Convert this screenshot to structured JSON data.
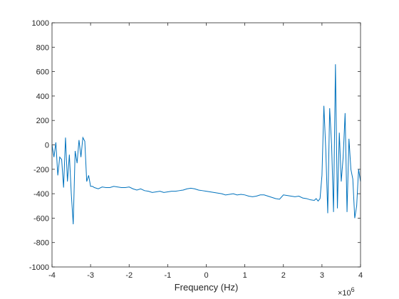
{
  "chart_data": {
    "type": "line",
    "xlabel": "Frequency (Hz)",
    "ylabel": "",
    "title": "",
    "x_exponent_base": "×10",
    "x_exponent_power": "6",
    "xlim": [
      -4,
      4
    ],
    "ylim": [
      -1000,
      1000
    ],
    "x_ticks": [
      -4,
      -3,
      -2,
      -1,
      0,
      1,
      2,
      3,
      4
    ],
    "x_tick_labels": [
      "-4",
      "-3",
      "-2",
      "-1",
      "0",
      "1",
      "2",
      "3",
      "4"
    ],
    "y_ticks": [
      -1000,
      -800,
      -600,
      -400,
      -200,
      0,
      200,
      400,
      600,
      800,
      1000
    ],
    "y_tick_labels": [
      "-1000",
      "-800",
      "-600",
      "-400",
      "-200",
      "0",
      "200",
      "400",
      "600",
      "800",
      "1000"
    ],
    "grid": false,
    "series_color": "#0072BD",
    "series": [
      {
        "x": [
          -4.0,
          -3.95,
          -3.9,
          -3.85,
          -3.8,
          -3.75,
          -3.7,
          -3.65,
          -3.6,
          -3.55,
          -3.5,
          -3.45,
          -3.4,
          -3.35,
          -3.3,
          -3.25,
          -3.2,
          -3.15,
          -3.1,
          -3.05,
          -3.0,
          -2.95,
          -2.9,
          -2.8,
          -2.7,
          -2.6,
          -2.5,
          -2.4,
          -2.3,
          -2.2,
          -2.1,
          -2.0,
          -1.9,
          -1.8,
          -1.7,
          -1.6,
          -1.5,
          -1.4,
          -1.3,
          -1.2,
          -1.1,
          -1.0,
          -0.9,
          -0.8,
          -0.7,
          -0.6,
          -0.5,
          -0.4,
          -0.3,
          -0.2,
          -0.1,
          0.0,
          0.1,
          0.2,
          0.3,
          0.4,
          0.5,
          0.6,
          0.7,
          0.8,
          0.9,
          1.0,
          1.1,
          1.2,
          1.3,
          1.4,
          1.5,
          1.6,
          1.7,
          1.8,
          1.9,
          2.0,
          2.1,
          2.2,
          2.3,
          2.4,
          2.5,
          2.6,
          2.7,
          2.8,
          2.85,
          2.9,
          2.95,
          3.0,
          3.05,
          3.1,
          3.15,
          3.2,
          3.25,
          3.3,
          3.35,
          3.4,
          3.45,
          3.5,
          3.55,
          3.6,
          3.65,
          3.7,
          3.75,
          3.8,
          3.85,
          3.9,
          3.95,
          4.0
        ],
        "y": [
          0,
          -100,
          20,
          -250,
          -100,
          -120,
          -350,
          60,
          -300,
          -80,
          -400,
          -650,
          -50,
          -150,
          40,
          -100,
          60,
          30,
          -300,
          -250,
          -340,
          -340,
          -350,
          -360,
          -345,
          -350,
          -350,
          -340,
          -345,
          -350,
          -350,
          -345,
          -360,
          -370,
          -360,
          -375,
          -380,
          -390,
          -385,
          -380,
          -390,
          -385,
          -380,
          -380,
          -375,
          -370,
          -360,
          -355,
          -360,
          -370,
          -375,
          -380,
          -385,
          -390,
          -395,
          -400,
          -410,
          -405,
          -400,
          -410,
          -405,
          -410,
          -420,
          -425,
          -420,
          -410,
          -410,
          -420,
          -430,
          -440,
          -445,
          -410,
          -415,
          -420,
          -425,
          -420,
          -435,
          -440,
          -450,
          -455,
          -440,
          -460,
          -440,
          -250,
          320,
          -50,
          -560,
          300,
          0,
          -550,
          660,
          -520,
          100,
          -300,
          -100,
          260,
          -550,
          50,
          -200,
          -280,
          -600,
          -500,
          -200,
          -300
        ]
      }
    ]
  }
}
